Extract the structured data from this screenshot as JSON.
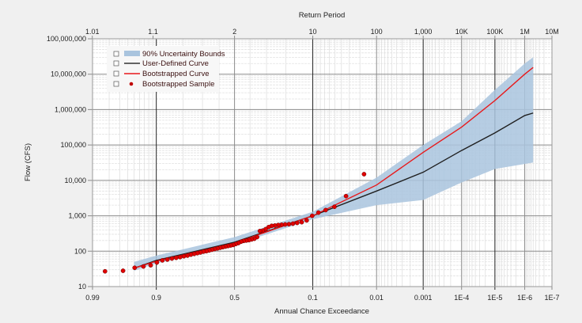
{
  "chart_data": {
    "type": "line",
    "xlabel": "Annual Chance Exceedance",
    "ylabel": "Flow (CFS)",
    "top_axis_label": "Return Period",
    "x_scale": "normal-probability",
    "y_scale": "log",
    "xlim": [
      0.99,
      1e-07
    ],
    "ylim": [
      10,
      100000000
    ],
    "grid": true,
    "legend_placement": "top-left",
    "x_ticks": [
      {
        "value": 0.99,
        "label": "0.99"
      },
      {
        "value": 0.9,
        "label": "0.9"
      },
      {
        "value": 0.5,
        "label": "0.5"
      },
      {
        "value": 0.1,
        "label": "0.1"
      },
      {
        "value": 0.01,
        "label": "0.01"
      },
      {
        "value": 0.001,
        "label": "0.001"
      },
      {
        "value": 0.0001,
        "label": "1E-4"
      },
      {
        "value": 1e-05,
        "label": "1E-5"
      },
      {
        "value": 1e-06,
        "label": "1E-6"
      },
      {
        "value": 1e-07,
        "label": "1E-7"
      }
    ],
    "top_ticks": [
      {
        "value": 1.01,
        "label": "1.01"
      },
      {
        "value": 1.1,
        "label": "1.1"
      },
      {
        "value": 2,
        "label": "2"
      },
      {
        "value": 10,
        "label": "10"
      },
      {
        "value": 100,
        "label": "100"
      },
      {
        "value": 1000,
        "label": "1,000"
      },
      {
        "value": 10000,
        "label": "10K"
      },
      {
        "value": 100000,
        "label": "100K"
      },
      {
        "value": 1000000,
        "label": "1M"
      },
      {
        "value": 10000000,
        "label": "10M"
      }
    ],
    "y_ticks": [
      {
        "value": 10,
        "label": "10"
      },
      {
        "value": 100,
        "label": "100"
      },
      {
        "value": 1000,
        "label": "1,000"
      },
      {
        "value": 10000,
        "label": "10,000"
      },
      {
        "value": 100000,
        "label": "100,000"
      },
      {
        "value": 1000000,
        "label": "1,000,000"
      },
      {
        "value": 10000000,
        "label": "10,000,000"
      },
      {
        "value": 100000000,
        "label": "100,000,000"
      }
    ],
    "legend": [
      {
        "label": "90% Uncertainty Bounds",
        "checked": true,
        "symbol": "band"
      },
      {
        "label": "User-Defined Curve",
        "checked": true,
        "symbol": "line"
      },
      {
        "label": "Bootstrapped Curve",
        "checked": true,
        "symbol": "line"
      },
      {
        "label": "Bootstrapped Sample",
        "checked": true,
        "symbol": "marker"
      }
    ],
    "colors": {
      "band": "#a9c4de",
      "user_curve": "#1f1f1f",
      "boot_curve": "#e8191b",
      "sample": "#e00000"
    },
    "series": [
      {
        "name": "90% Uncertainty Bounds",
        "type": "band",
        "p": [
          0.95,
          0.9,
          0.5,
          0.1,
          0.01,
          0.001,
          0.0001,
          1e-05,
          1e-06,
          5e-07
        ],
        "upper": [
          50,
          75,
          250,
          1300,
          12000,
          100000,
          470000,
          3600000,
          20000000,
          30000000
        ],
        "lower": [
          28,
          45,
          150,
          800,
          2000,
          2800,
          8700,
          21000,
          29000,
          32000
        ]
      },
      {
        "name": "User-Defined Curve",
        "type": "line",
        "p": [
          0.95,
          0.9,
          0.5,
          0.1,
          0.01,
          0.001,
          0.0001,
          1e-05,
          1e-06,
          5e-07
        ],
        "values": [
          33,
          55,
          180,
          1000,
          5000,
          17000,
          70000,
          220000,
          680000,
          800000
        ]
      },
      {
        "name": "Bootstrapped Curve",
        "type": "line",
        "p": [
          0.95,
          0.9,
          0.5,
          0.1,
          0.01,
          0.001,
          0.0001,
          1e-05,
          1e-06,
          5e-07
        ],
        "values": [
          33,
          52,
          170,
          1000,
          7400,
          62000,
          320000,
          1800000,
          10000000,
          15500000
        ]
      },
      {
        "name": "Bootstrapped Sample",
        "type": "scatter",
        "values": [
          15000,
          3600,
          1800,
          1450,
          1230,
          1000,
          740,
          660,
          630,
          600,
          580,
          570,
          560,
          550,
          530,
          520,
          480,
          420,
          380,
          370,
          250,
          225,
          215,
          205,
          200,
          195,
          185,
          170,
          160,
          150,
          145,
          140,
          135,
          130,
          125,
          120,
          115,
          110,
          105,
          100,
          97,
          92,
          88,
          84,
          80,
          75,
          72,
          68,
          65,
          62,
          58,
          55,
          48,
          40,
          37,
          34,
          28,
          27
        ]
      }
    ]
  }
}
